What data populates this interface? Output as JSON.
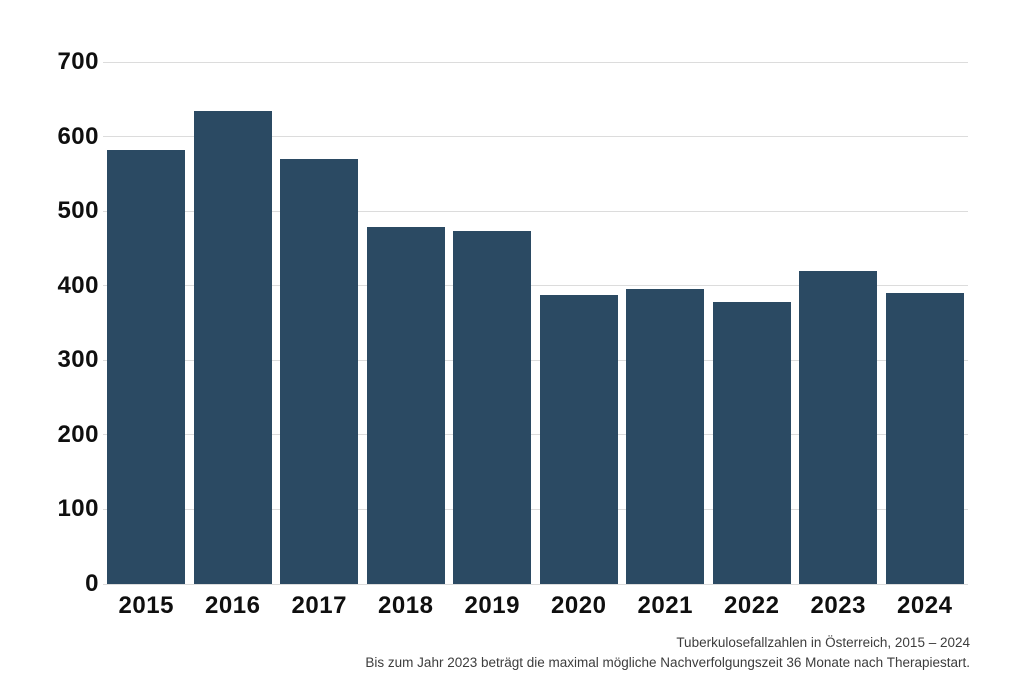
{
  "chart_data": {
    "type": "bar",
    "categories": [
      "2015",
      "2016",
      "2017",
      "2018",
      "2019",
      "2020",
      "2021",
      "2022",
      "2023",
      "2024"
    ],
    "values": [
      582,
      634,
      570,
      479,
      473,
      387,
      395,
      378,
      420,
      390
    ],
    "title": "Tuberkulosefallzahlen in Österreich, 2015 – 2024",
    "xlabel": "",
    "ylabel": "",
    "ylim": [
      0,
      700
    ],
    "yticks": [
      0,
      100,
      200,
      300,
      400,
      500,
      600,
      700
    ],
    "grid": "horizontal",
    "legend": "none",
    "bar_color": "#2b4a63",
    "gridline_color": "#dcdcdc",
    "axis_label_color": "#0f0f0f",
    "caption_color": "#3d3d3d"
  },
  "caption": {
    "line1": "Tuberkulosefallzahlen in Österreich, 2015 – 2024",
    "line2": "Bis zum Jahr 2023 beträgt die maximal mögliche Nachverfolgungszeit 36 Monate nach Therapiestart."
  }
}
